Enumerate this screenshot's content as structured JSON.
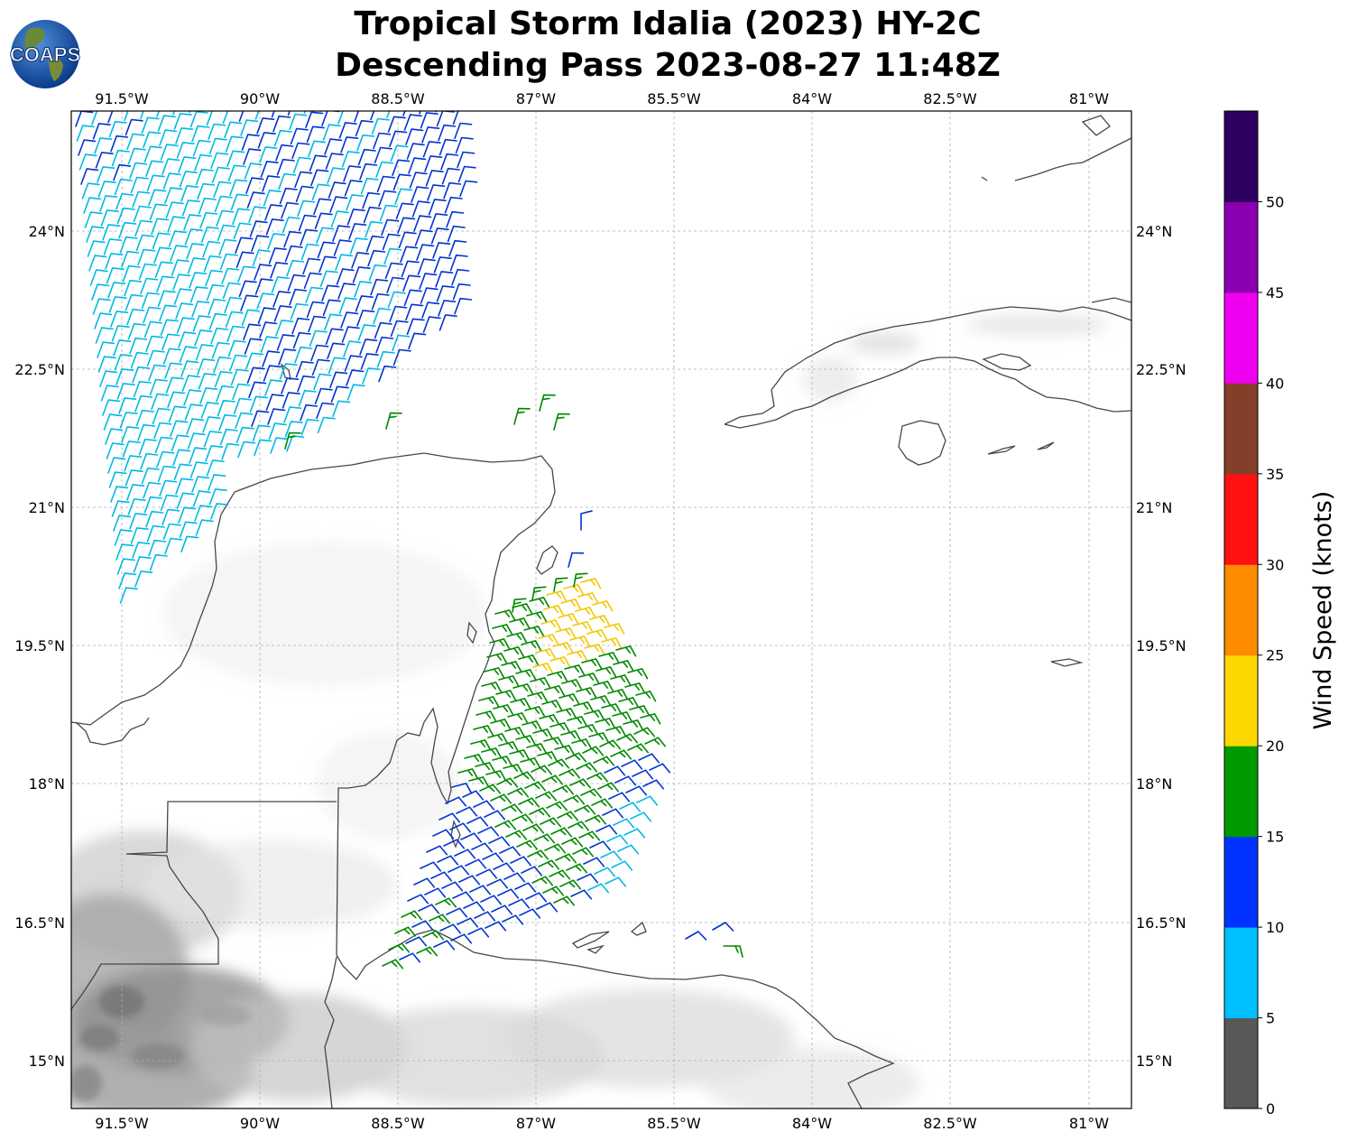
{
  "title": {
    "line1": "Tropical Storm Idalia (2023) HY-2C",
    "line2": "Descending Pass 2023-08-27 11:48Z"
  },
  "logo": {
    "text": "COAPS",
    "icon": "globe-logo-icon"
  },
  "map": {
    "lon_ticks": [
      "91.5°W",
      "90°W",
      "88.5°W",
      "87°W",
      "85.5°W",
      "84°W",
      "82.5°W",
      "81°W"
    ],
    "lat_ticks": [
      "24°N",
      "22.5°N",
      "21°N",
      "19.5°N",
      "18°N",
      "16.5°N",
      "15°N"
    ],
    "gridlines": true,
    "background": "grayscale satellite imagery over land",
    "coastline_color": "#444444"
  },
  "colorbar": {
    "label": "Wind Speed (knots)",
    "ticks": [
      "0",
      "5",
      "10",
      "15",
      "20",
      "25",
      "30",
      "35",
      "40",
      "45",
      "50"
    ],
    "colors": [
      "#585858",
      "#00bfff",
      "#0033ff",
      "#009900",
      "#ffd700",
      "#ff8c00",
      "#ff1111",
      "#843f2a",
      "#f000f0",
      "#8a00b0",
      "#2c0060"
    ]
  },
  "chart_data": {
    "type": "scatter",
    "variable": "wind barbs",
    "speed_classes_knots": {
      "#00bfff": [
        5,
        10
      ],
      "#0033ff": [
        10,
        15
      ],
      "#009900": [
        15,
        20
      ],
      "#ffd700": [
        20,
        25
      ]
    },
    "regions": [
      {
        "lon_range": [
          -92,
          -87.8
        ],
        "lat_range": [
          19.1,
          25.2
        ],
        "speed_class": "5-15"
      },
      {
        "lon_range": [
          -87.8,
          -86.1
        ],
        "lat_range": [
          21.8,
          23.5
        ],
        "speed_class": "10-20"
      },
      {
        "lon_range": [
          -88.5,
          -85.0
        ],
        "lat_range": [
          16.3,
          20.7
        ],
        "speed_class": "10-25"
      }
    ]
  }
}
